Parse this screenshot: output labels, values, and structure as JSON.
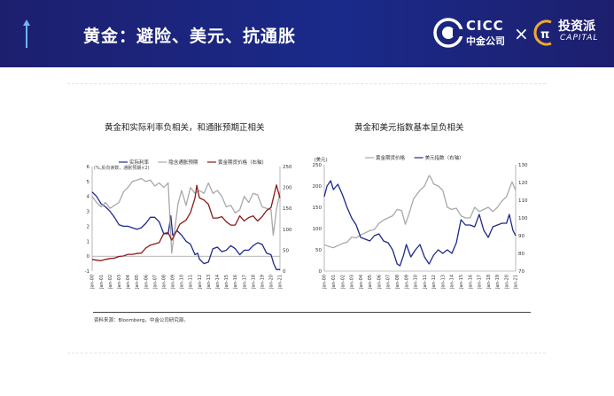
{
  "header": {
    "title": "黄金：避险、美元、抗通胀",
    "cicc_en": "CICC",
    "cicc_cn": "中金公司",
    "times": "×",
    "capital_cn": "投资派",
    "capital_en": "CAPITAL",
    "brand_color": "#1d1f6e"
  },
  "footer": {
    "source": "资料来源：Bloomberg，中金公司研究部。"
  },
  "chart_data": [
    {
      "type": "line",
      "title": "黄金和实际利率负相关，和通胀预期正相关",
      "note": "(%,反向读数，通胀预期×2)",
      "legend": [
        "实际利率",
        "隐含通胀预期",
        "黄金期货价格（右轴）"
      ],
      "legend_placement": "top",
      "categories": [
        "Jan-00",
        "Jan-01",
        "Jan-02",
        "Jan-03",
        "Jan-04",
        "Jan-05",
        "Jan-06",
        "Jan-07",
        "Jan-08",
        "Jan-09",
        "Jan-10",
        "Jan-11",
        "Jan-12",
        "Jan-13",
        "Jan-14",
        "Jan-15",
        "Jan-16",
        "Jan-17",
        "Jan-18",
        "Jan-19",
        "Jan-20",
        "Jan-21"
      ],
      "ylim": [
        -1,
        6
      ],
      "yticks": [
        -1,
        0,
        1,
        2,
        3,
        4,
        5,
        6
      ],
      "y2lim": [
        0,
        250
      ],
      "y2ticks": [
        0,
        50,
        100,
        150,
        200,
        250
      ],
      "series": [
        {
          "name": "实际利率",
          "axis": "left",
          "color": "#1f2a8a",
          "x": [
            2000,
            2000.5,
            2001,
            2001.5,
            2002,
            2002.5,
            2003,
            2003.5,
            2004,
            2004.5,
            2005,
            2005.5,
            2006,
            2006.5,
            2007,
            2007.5,
            2008,
            2008.5,
            2008.8,
            2009,
            2009.5,
            2010,
            2010.5,
            2011,
            2011.5,
            2011.8,
            2012,
            2012.5,
            2013,
            2013.5,
            2014,
            2014.5,
            2015,
            2015.5,
            2016,
            2016.5,
            2017,
            2017.5,
            2018,
            2018.5,
            2019,
            2019.5,
            2020,
            2020.3,
            2020.6,
            2021
          ],
          "values": [
            4.3,
            4.0,
            3.5,
            3.3,
            3.0,
            2.6,
            2.1,
            2.0,
            2.0,
            1.9,
            1.8,
            1.9,
            2.2,
            2.6,
            2.6,
            2.3,
            1.5,
            1.5,
            2.7,
            1.4,
            1.7,
            1.4,
            1.0,
            0.8,
            0.1,
            0.2,
            -0.2,
            -0.5,
            -0.4,
            0.5,
            0.6,
            0.3,
            0.4,
            0.7,
            0.5,
            0.1,
            0.4,
            0.4,
            0.7,
            0.9,
            0.8,
            0.2,
            0.1,
            -0.5,
            -0.9,
            -0.9
          ]
        },
        {
          "name": "隐含通胀预期",
          "axis": "left",
          "color": "#a9a9a9",
          "x": [
            2000,
            2000.5,
            2001,
            2001.5,
            2002,
            2002.5,
            2003,
            2003.5,
            2004,
            2004.5,
            2005,
            2005.5,
            2006,
            2006.5,
            2007,
            2007.5,
            2008,
            2008.5,
            2008.9,
            2009.2,
            2009.6,
            2010,
            2010.5,
            2011,
            2011.5,
            2012,
            2012.5,
            2013,
            2013.5,
            2014,
            2014.5,
            2015,
            2015.5,
            2016,
            2016.5,
            2017,
            2017.5,
            2018,
            2018.5,
            2019,
            2019.5,
            2020,
            2020.25,
            2020.6,
            2021
          ],
          "values": [
            4.0,
            3.6,
            3.3,
            3.6,
            3.2,
            3.4,
            3.6,
            4.3,
            4.6,
            5.0,
            5.1,
            5.2,
            5.0,
            5.1,
            4.7,
            4.9,
            4.6,
            4.9,
            0.2,
            1.6,
            3.5,
            4.4,
            3.4,
            4.6,
            4.2,
            4.4,
            4.2,
            4.9,
            4.2,
            4.4,
            4.0,
            3.3,
            3.4,
            2.9,
            3.1,
            4.0,
            3.6,
            4.2,
            4.1,
            3.3,
            3.2,
            3.1,
            1.4,
            3.1,
            4.3
          ]
        },
        {
          "name": "黄金期货价格（右轴）",
          "axis": "right",
          "color": "#8b1a1a",
          "x": [
            2000,
            2000.5,
            2001,
            2001.5,
            2002,
            2002.5,
            2003,
            2003.5,
            2004,
            2004.5,
            2005,
            2005.5,
            2006,
            2006.5,
            2007,
            2007.5,
            2008,
            2008.5,
            2008.9,
            2009.3,
            2009.8,
            2010.5,
            2011,
            2011.5,
            2011.7,
            2012,
            2012.5,
            2013,
            2013.5,
            2014,
            2014.5,
            2015,
            2015.5,
            2016,
            2016.5,
            2017,
            2017.5,
            2018,
            2018.5,
            2019,
            2019.5,
            2020,
            2020.6,
            2021
          ],
          "values": [
            28,
            26,
            25,
            28,
            30,
            31,
            35,
            36,
            40,
            40,
            42,
            43,
            55,
            62,
            65,
            68,
            90,
            92,
            74,
            90,
            112,
            122,
            140,
            175,
            205,
            175,
            170,
            160,
            127,
            127,
            130,
            118,
            110,
            110,
            132,
            120,
            128,
            132,
            120,
            130,
            145,
            152,
            206,
            175
          ]
        }
      ]
    },
    {
      "type": "line",
      "title": "黄金和美元指数基本呈负相关",
      "ylabel": "(美元)",
      "legend": [
        "黄金期货价格",
        "美元指数（右轴）"
      ],
      "legend_placement": "top",
      "categories": [
        "Jan-00",
        "Jan-01",
        "Jan-02",
        "Jan-03",
        "Jan-04",
        "Jan-05",
        "Jan-06",
        "Jan-07",
        "Jan-08",
        "Jan-09",
        "Jan-10",
        "Jan-11",
        "Jan-12",
        "Jan-13",
        "Jan-14",
        "Jan-15",
        "Jan-16",
        "Jan-17",
        "Jan-18",
        "Jan-19",
        "Jan-20",
        "Jan-21"
      ],
      "ylim": [
        0,
        250
      ],
      "yticks": [
        0,
        50,
        100,
        150,
        200,
        250
      ],
      "y2lim": [
        70,
        130
      ],
      "y2ticks": [
        70,
        80,
        90,
        100,
        110,
        120,
        130
      ],
      "series": [
        {
          "name": "黄金期货价格",
          "axis": "left",
          "color": "#a9a9a9",
          "x": [
            2000,
            2000.5,
            2001,
            2001.5,
            2002,
            2002.5,
            2003,
            2003.5,
            2004,
            2004.5,
            2005,
            2005.5,
            2006,
            2006.5,
            2007,
            2007.5,
            2008,
            2008.5,
            2008.9,
            2009.3,
            2009.8,
            2010.5,
            2011,
            2011.5,
            2011.7,
            2012,
            2012.5,
            2013,
            2013.5,
            2014,
            2014.5,
            2015,
            2015.5,
            2016,
            2016.5,
            2017,
            2017.5,
            2018,
            2018.5,
            2019,
            2019.5,
            2020,
            2020.6,
            2021
          ],
          "values": [
            62,
            58,
            55,
            60,
            65,
            68,
            80,
            78,
            85,
            90,
            95,
            98,
            112,
            120,
            125,
            130,
            145,
            142,
            110,
            135,
            170,
            190,
            200,
            225,
            220,
            205,
            200,
            190,
            150,
            145,
            148,
            130,
            125,
            125,
            150,
            140,
            145,
            150,
            140,
            150,
            165,
            175,
            210,
            190
          ]
        },
        {
          "name": "美元指数（右轴）",
          "axis": "right",
          "color": "#1f2a8a",
          "x": [
            2000,
            2000.3,
            2000.7,
            2001,
            2001.5,
            2002,
            2002.5,
            2003,
            2003.5,
            2004,
            2004.5,
            2005,
            2005.5,
            2006,
            2006.5,
            2007,
            2007.5,
            2008,
            2008.3,
            2008.7,
            2009,
            2009.5,
            2010,
            2010.5,
            2011,
            2011.5,
            2012,
            2012.5,
            2013,
            2013.5,
            2014,
            2014.5,
            2015,
            2015.5,
            2016,
            2016.5,
            2017,
            2017.5,
            2018,
            2018.5,
            2019,
            2019.5,
            2020,
            2020.3,
            2020.7,
            2021
          ],
          "values": [
            112,
            118,
            121,
            116,
            119,
            113,
            106,
            100,
            96,
            89,
            88,
            87,
            90,
            91,
            87,
            86,
            82,
            74,
            73,
            79,
            85,
            78,
            82,
            85,
            78,
            74,
            79,
            82,
            80,
            82,
            80,
            86,
            99,
            96,
            96,
            95,
            102,
            93,
            89,
            95,
            96,
            97,
            97,
            102,
            93,
            90
          ]
        }
      ]
    }
  ]
}
